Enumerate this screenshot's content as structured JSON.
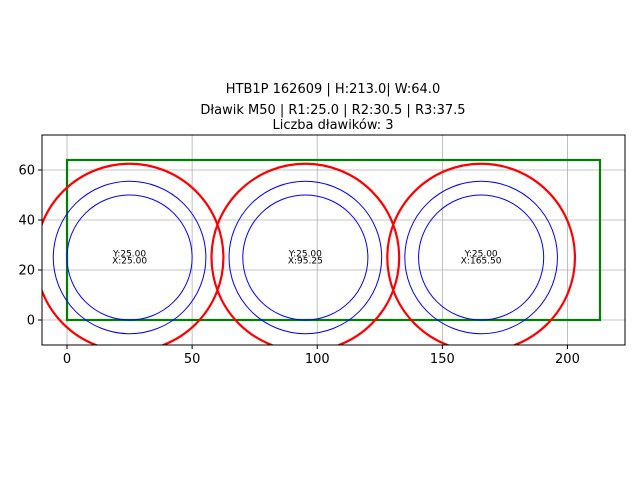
{
  "chart_data": {
    "type": "scatter",
    "title_lines": [
      "HTB1P 162609 | H:213.0| W:64.0",
      "Dławik M50 | R1:25.0 | R2:30.5 | R3:37.5",
      "Liczba dławików: 3"
    ],
    "xlabel": "",
    "ylabel": "",
    "xlim": [
      -10,
      223
    ],
    "ylim": [
      -10,
      74
    ],
    "xticks": [
      0,
      50,
      100,
      150,
      200
    ],
    "yticks": [
      0,
      20,
      40,
      60
    ],
    "grid": true,
    "rectangle": {
      "x": 0,
      "y": 0,
      "width": 213.0,
      "height": 64.0,
      "color": "#008000"
    },
    "radii": {
      "r1": 25.0,
      "r2": 30.5,
      "r3": 37.5
    },
    "colors": {
      "r1": "#0000ff",
      "r2": "#0000ff",
      "r3": "#ff0000"
    },
    "glands": [
      {
        "x": 25.0,
        "y": 25.0,
        "label_y": "Y:25.00",
        "label_x": "X:25.00"
      },
      {
        "x": 95.25,
        "y": 25.0,
        "label_y": "Y:25.00",
        "label_x": "X:95.25"
      },
      {
        "x": 165.5,
        "y": 25.0,
        "label_y": "Y:25.00",
        "label_x": "X:165.50"
      }
    ]
  }
}
